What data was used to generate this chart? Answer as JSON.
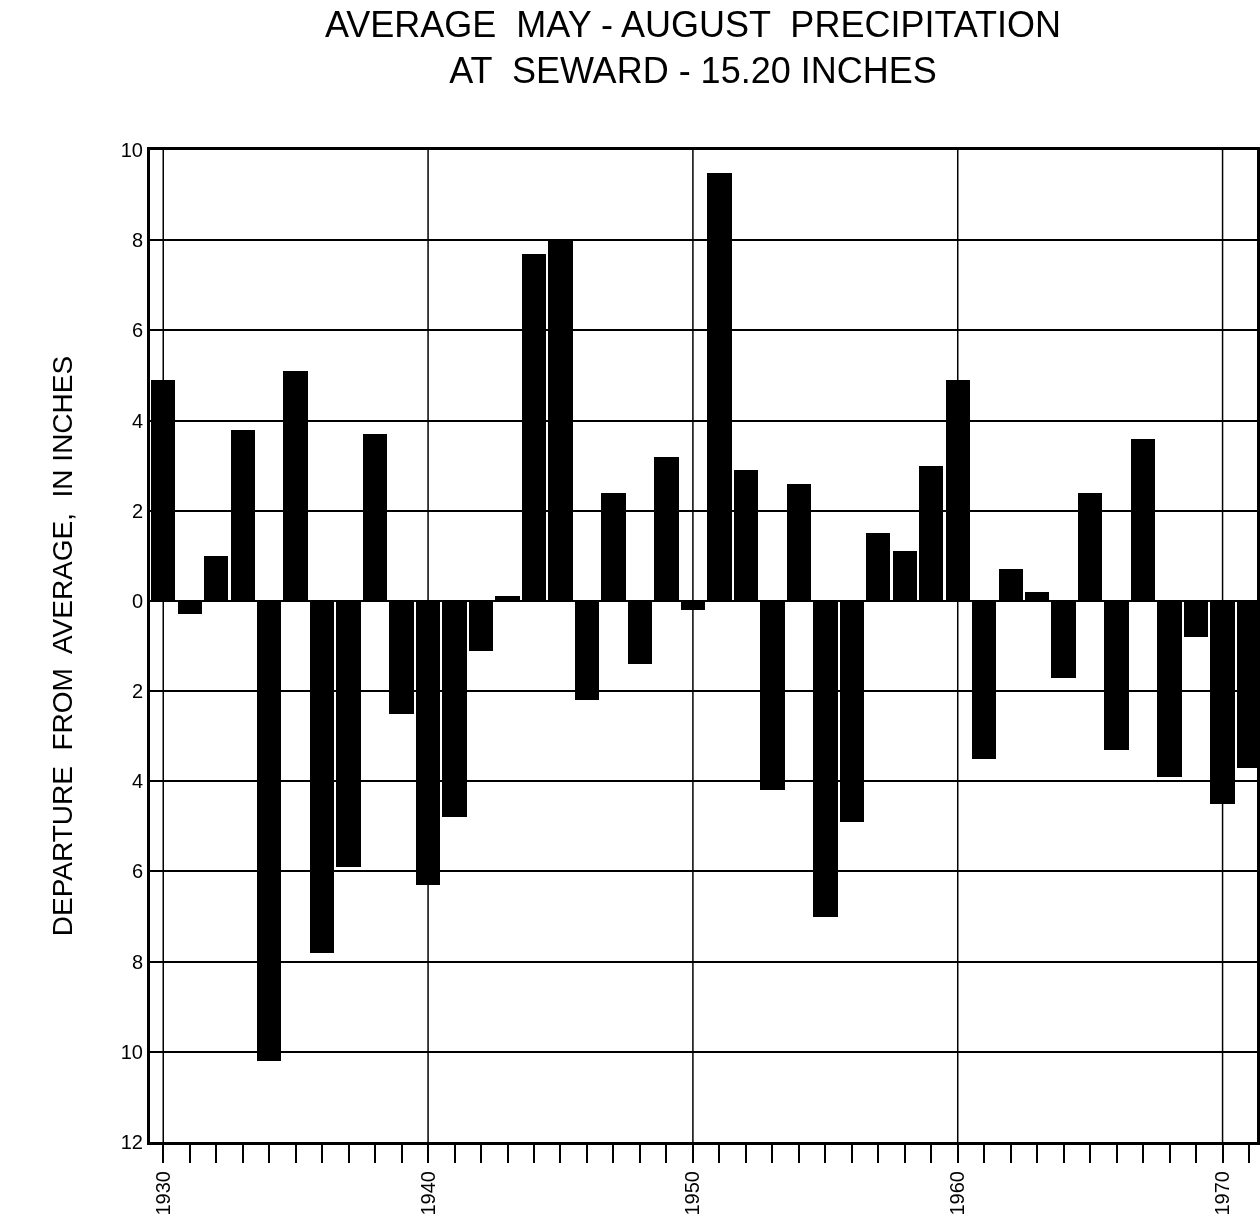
{
  "chart_data": {
    "type": "bar",
    "title": "AVERAGE  MAY - AUGUST  PRECIPITATION\nAT  SEWARD - 15.20 INCHES",
    "ylabel": "DEPARTURE  FROM  AVERAGE,  IN INCHES",
    "x": [
      1930,
      1931,
      1932,
      1933,
      1934,
      1935,
      1936,
      1937,
      1938,
      1939,
      1940,
      1941,
      1942,
      1943,
      1944,
      1945,
      1946,
      1947,
      1948,
      1949,
      1950,
      1951,
      1952,
      1953,
      1954,
      1955,
      1956,
      1957,
      1958,
      1959,
      1960,
      1961,
      1962,
      1963,
      1964,
      1965,
      1966,
      1967,
      1968,
      1969,
      1970,
      1971
    ],
    "values": [
      4.9,
      -0.3,
      1.0,
      3.8,
      -10.2,
      5.1,
      -7.8,
      -5.9,
      3.7,
      -2.5,
      -6.3,
      -4.8,
      -1.1,
      0.1,
      7.7,
      8.0,
      -2.2,
      2.4,
      -1.4,
      3.2,
      -0.2,
      9.5,
      2.9,
      -4.2,
      2.6,
      -7.0,
      -4.9,
      1.5,
      1.1,
      3.0,
      4.9,
      -3.5,
      0.7,
      0.2,
      -1.7,
      2.4,
      -3.3,
      3.6,
      -3.9,
      -0.8,
      -4.5,
      -3.7
    ],
    "color": "#000000",
    "ylim": [
      -12,
      10
    ],
    "yticks": [
      {
        "value": -12,
        "label": "12"
      },
      {
        "value": -10,
        "label": "10"
      },
      {
        "value": -8,
        "label": "8"
      },
      {
        "value": -6,
        "label": "6"
      },
      {
        "value": -4,
        "label": "4"
      },
      {
        "value": -2,
        "label": "2"
      },
      0,
      2,
      4,
      6,
      8,
      10
    ],
    "xlim": [
      1929.5,
      1971.3
    ],
    "xticks": [
      1930,
      1940,
      1950,
      1960,
      1970
    ],
    "grid": true
  }
}
